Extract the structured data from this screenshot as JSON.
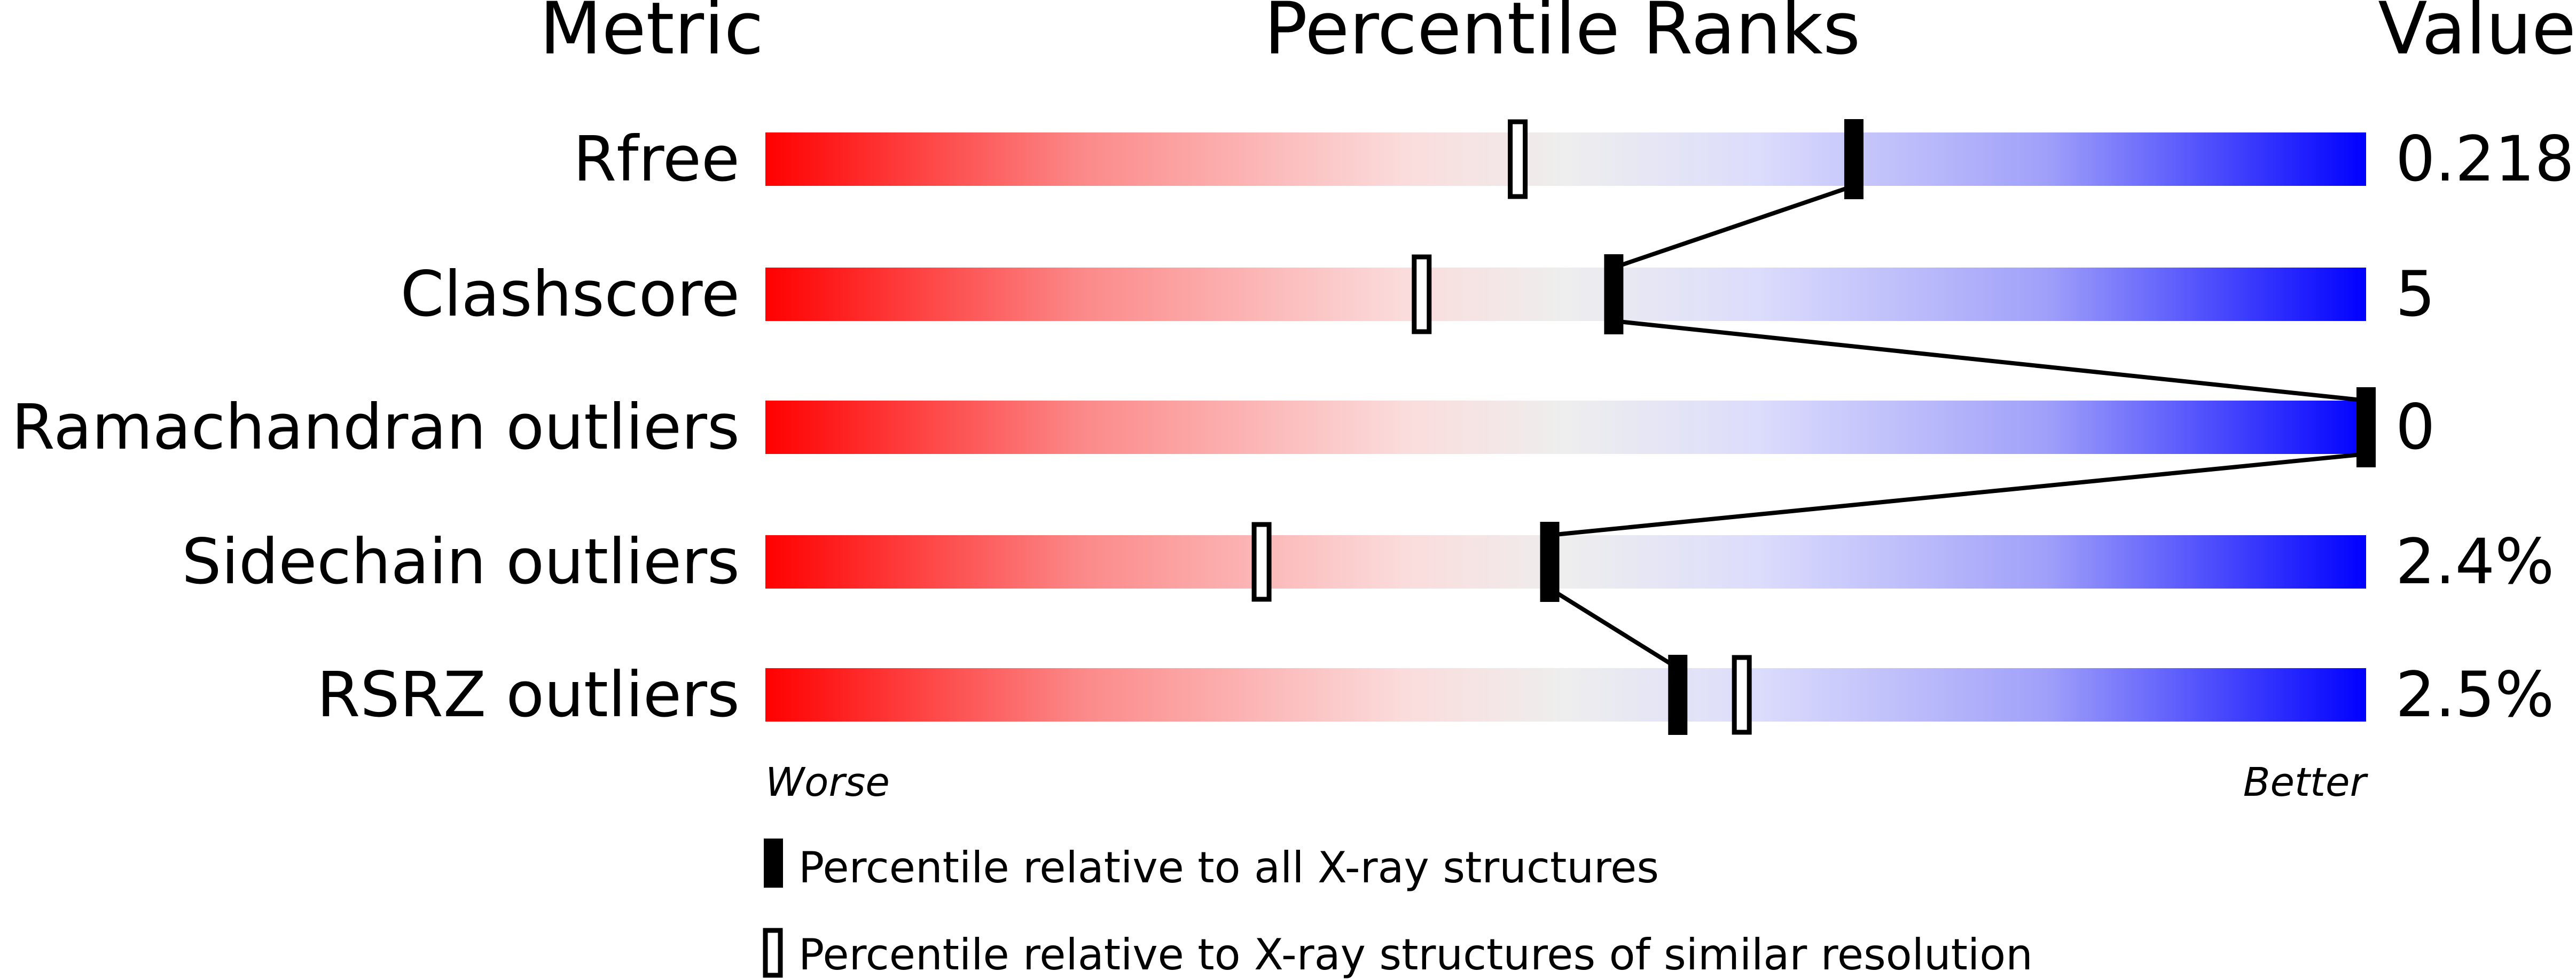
{
  "chart_data": {
    "type": "percentile",
    "headers": {
      "metric": "Metric",
      "ranks": "Percentile Ranks",
      "value": "Value"
    },
    "xlim": [
      0,
      100
    ],
    "axis_labels": {
      "left": "Worse",
      "right": "Better"
    },
    "metrics": [
      {
        "name": "Rfree",
        "value": "0.218",
        "percentile_all": 68,
        "percentile_similar": 47
      },
      {
        "name": "Clashscore",
        "value": "5",
        "percentile_all": 53,
        "percentile_similar": 41
      },
      {
        "name": "Ramachandran outliers",
        "value": "0",
        "percentile_all": 100,
        "percentile_similar": null
      },
      {
        "name": "Sidechain outliers",
        "value": "2.4%",
        "percentile_all": 49,
        "percentile_similar": 31
      },
      {
        "name": "RSRZ outliers",
        "value": "2.5%",
        "percentile_all": 57,
        "percentile_similar": 61
      }
    ],
    "legend": [
      {
        "marker": "filled",
        "label": "Percentile relative to all X-ray structures"
      },
      {
        "marker": "open",
        "label": "Percentile relative to X-ray structures of similar resolution"
      }
    ],
    "colors": {
      "worse": "#ff0000",
      "mid": "#eeeeee",
      "better": "#0000ff"
    }
  }
}
